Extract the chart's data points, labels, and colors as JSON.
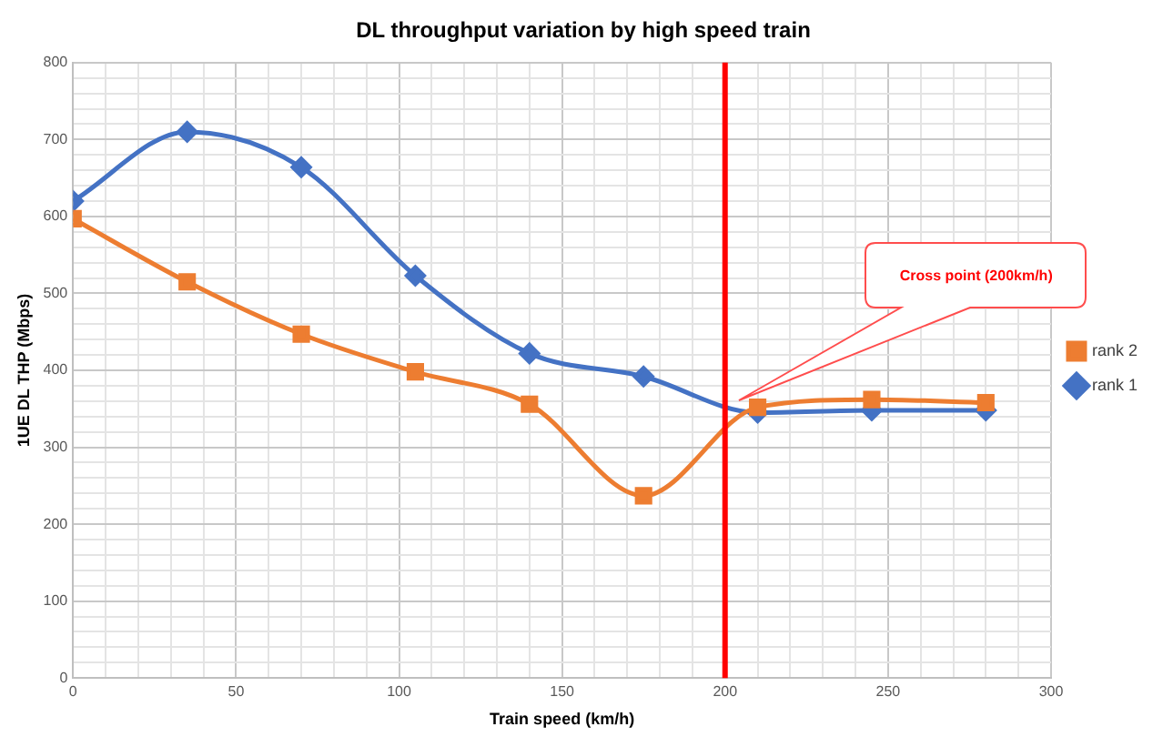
{
  "chart_data": {
    "type": "line",
    "title": "DL throughput variation by high speed train",
    "xlabel": "Train speed (km/h)",
    "ylabel": "1UE DL THP (Mbps)",
    "x": [
      0,
      35,
      70,
      105,
      140,
      175,
      210,
      245,
      280
    ],
    "series": [
      {
        "name": "rank 1",
        "color": "#4472c4",
        "marker": "diamond",
        "values": [
          620,
          710,
          664,
          523,
          422,
          392,
          345,
          348,
          348
        ]
      },
      {
        "name": "rank 2",
        "color": "#ed7d31",
        "marker": "square",
        "values": [
          597,
          515,
          447,
          398,
          356,
          237,
          352,
          362,
          358
        ]
      }
    ],
    "xlim": [
      0,
      300
    ],
    "xticks": [
      0,
      {
        "value": 10,
        "label": null
      },
      {
        "value": 20,
        "label": null
      },
      {
        "value": 30,
        "label": null
      },
      {
        "value": 40,
        "label": null
      },
      50,
      {
        "value": 60,
        "label": null
      },
      {
        "value": 70,
        "label": null
      },
      {
        "value": 80,
        "label": null
      },
      {
        "value": 90,
        "label": null
      },
      100,
      {
        "value": 110,
        "label": null
      },
      {
        "value": 120,
        "label": null
      },
      {
        "value": 130,
        "label": null
      },
      {
        "value": 140,
        "label": null
      },
      150,
      {
        "value": 160,
        "label": null
      },
      {
        "value": 170,
        "label": null
      },
      {
        "value": 180,
        "label": null
      },
      {
        "value": 190,
        "label": null
      },
      200,
      {
        "value": 210,
        "label": null
      },
      {
        "value": 220,
        "label": null
      },
      {
        "value": 230,
        "label": null
      },
      {
        "value": 240,
        "label": null
      },
      250,
      {
        "value": 260,
        "label": null
      },
      {
        "value": 270,
        "label": null
      },
      {
        "value": 280,
        "label": null
      },
      {
        "value": 290,
        "label": null
      },
      300
    ],
    "ylim": [
      0,
      800
    ],
    "yticks": [
      0,
      {
        "value": 20,
        "label": null
      },
      {
        "value": 40,
        "label": null
      },
      {
        "value": 60,
        "label": null
      },
      {
        "value": 80,
        "label": null
      },
      100,
      {
        "value": 120,
        "label": null
      },
      {
        "value": 140,
        "label": null
      },
      {
        "value": 160,
        "label": null
      },
      {
        "value": 180,
        "label": null
      },
      200,
      {
        "value": 220,
        "label": null
      },
      {
        "value": 240,
        "label": null
      },
      {
        "value": 260,
        "label": null
      },
      {
        "value": 280,
        "label": null
      },
      300,
      {
        "value": 320,
        "label": null
      },
      {
        "value": 340,
        "label": null
      },
      {
        "value": 360,
        "label": null
      },
      {
        "value": 380,
        "label": null
      },
      400,
      {
        "value": 420,
        "label": null
      },
      {
        "value": 440,
        "label": null
      },
      {
        "value": 460,
        "label": null
      },
      {
        "value": 480,
        "label": null
      },
      500,
      {
        "value": 520,
        "label": null
      },
      {
        "value": 540,
        "label": null
      },
      {
        "value": 560,
        "label": null
      },
      {
        "value": 580,
        "label": null
      },
      600,
      {
        "value": 620,
        "label": null
      },
      {
        "value": 640,
        "label": null
      },
      {
        "value": 660,
        "label": null
      },
      {
        "value": 680,
        "label": null
      },
      700,
      {
        "value": 720,
        "label": null
      },
      {
        "value": 740,
        "label": null
      },
      {
        "value": 760,
        "label": null
      },
      {
        "value": 780,
        "label": null
      },
      800
    ],
    "grid": true,
    "legend": "right",
    "line_style": "solid",
    "ref_lines": [
      {
        "axis": "x",
        "value": 200,
        "color": "#ff0000"
      }
    ],
    "annotations": [
      "Cross point (200km/h)"
    ]
  }
}
